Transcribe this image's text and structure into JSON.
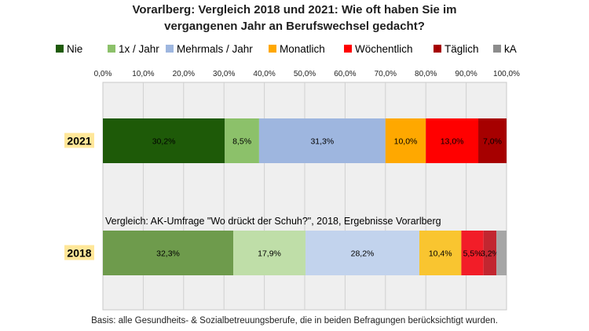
{
  "title_line1": "Vorarlberg: Vergleich 2018 und 2021: Wie oft haben Sie im",
  "title_line2": "vergangenen Jahr an Berufswechsel gedacht?",
  "footnote": "Basis: alle Gesundheits- & Sozialbetreuungsberufe, die in beiden Befragungen berücksichtigt wurden.",
  "comparison_label": "Vergleich: AK-Umfrage \"Wo drückt der Schuh?\", 2018, Ergebnisse Vorarlberg",
  "chart_data": {
    "type": "bar",
    "orientation": "horizontal",
    "stacked": true,
    "xlim": [
      0,
      100
    ],
    "x_ticks": [
      "0,0%",
      "10,0%",
      "20,0%",
      "30,0%",
      "40,0%",
      "50,0%",
      "60,0%",
      "70,0%",
      "80,0%",
      "90,0%",
      "100,0%"
    ],
    "x_tick_values": [
      0,
      10,
      20,
      30,
      40,
      50,
      60,
      70,
      80,
      90,
      100
    ],
    "legend_placement": "top",
    "categories": [
      "Nie",
      "1x / Jahr",
      "Mehrmals / Jahr",
      "Monatlich",
      "Wöchentlich",
      "Täglich",
      "kA"
    ],
    "colors": {
      "2021": [
        "#1e5a08",
        "#8cc16a",
        "#9eb6df",
        "#ffa800",
        "#ff0000",
        "#a60000",
        "#8c8c8c"
      ],
      "2018": [
        "#6e9b4c",
        "#bfdea8",
        "#c2d3ed",
        "#f9c530",
        "#f21d28",
        "#c22630",
        "#a6a6a6"
      ]
    },
    "legend_colors": [
      "#1e5a08",
      "#8cc16a",
      "#9eb6df",
      "#ffa800",
      "#ff0000",
      "#a60000",
      "#8c8c8c"
    ],
    "rows": [
      {
        "label": "2021",
        "values": [
          30.2,
          8.5,
          31.3,
          10.0,
          13.0,
          7.0,
          0
        ],
        "data_labels": [
          "30,2%",
          "8,5%",
          "31,3%",
          "10,0%",
          "13,0%",
          "7,0%",
          ""
        ]
      },
      {
        "label": "2018",
        "values": [
          32.3,
          17.9,
          28.2,
          10.4,
          5.5,
          3.2,
          2.5
        ],
        "data_labels": [
          "32,3%",
          "17,9%",
          "28,2%",
          "10,4%",
          "5,5%",
          "3,2%",
          ""
        ]
      }
    ]
  }
}
